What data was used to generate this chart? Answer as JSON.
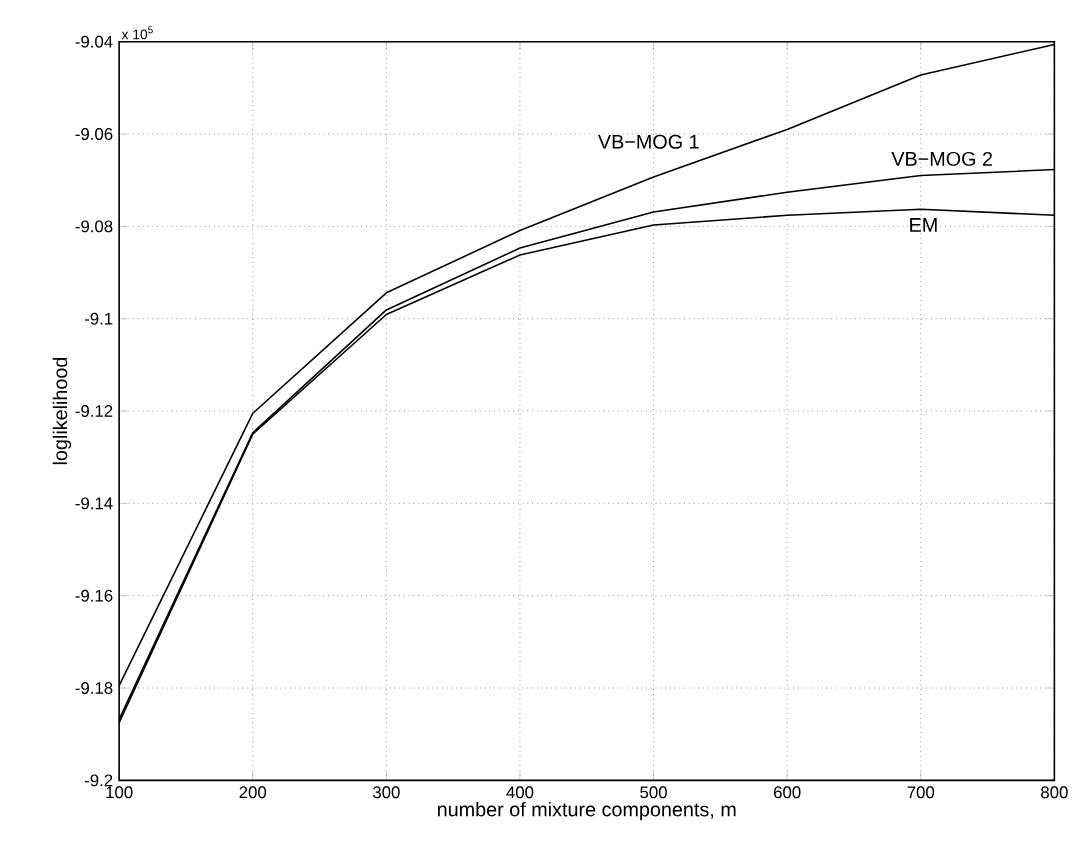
{
  "chart_data": {
    "type": "line",
    "xlabel": "number of mixture components, m",
    "ylabel": "loglikelihood",
    "annotations": [
      "x 10$^{5}$"
    ],
    "x": [
      100,
      200,
      300,
      400,
      500,
      600,
      700,
      800
    ],
    "series": [
      {
        "name": "VB−MOG 1",
        "color": "#000000",
        "values": [
          -9.1795,
          -9.1205,
          -9.0944,
          -9.0809,
          -9.0693,
          -9.059,
          -9.0472,
          -9.0406
        ]
      },
      {
        "name": "VB−MOG 2",
        "color": "#000000",
        "values": [
          -9.1868,
          -9.1247,
          -9.0981,
          -9.0847,
          -9.0769,
          -9.0726,
          -9.069,
          -9.0677
        ]
      },
      {
        "name": "EM",
        "color": "#000000",
        "values": [
          -9.1875,
          -9.125,
          -9.0991,
          -9.0862,
          -9.0797,
          -9.0776,
          -9.0763,
          -9.0776
        ]
      }
    ],
    "xlim": [
      100,
      800
    ],
    "ylim": [
      -9.2,
      -9.04
    ],
    "xticks": [
      100,
      200,
      300,
      400,
      500,
      600,
      700,
      800
    ],
    "yticks": [
      -9.2,
      -9.18,
      -9.16,
      -9.14,
      -9.12,
      -9.1,
      -9.08,
      -9.06,
      -9.04
    ],
    "grid": true,
    "legend": false,
    "marker": "none",
    "line_style": "solid"
  }
}
